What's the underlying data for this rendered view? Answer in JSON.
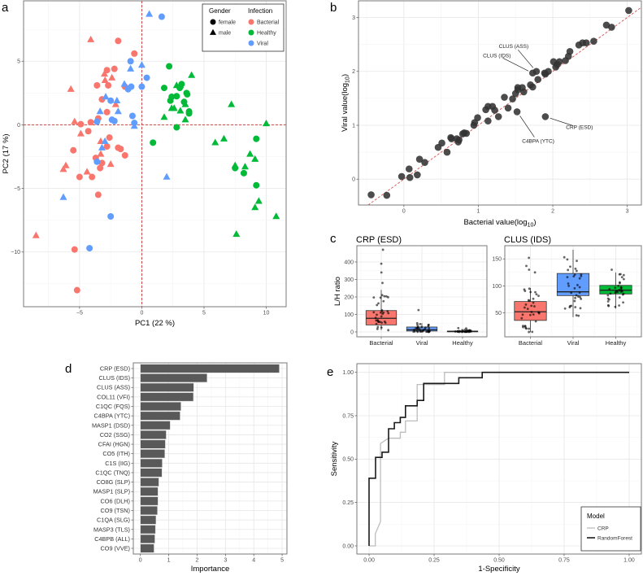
{
  "panels": {
    "a": "a",
    "b": "b",
    "c": "c",
    "d": "d",
    "e": "e"
  },
  "chart_data": [
    {
      "id": "pca",
      "type": "scatter",
      "title": "",
      "xlabel": "PC1 (22 %)",
      "ylabel": "PC2 (17 %)",
      "xlim": [
        -9.5,
        11.6
      ],
      "ylim": [
        -14.3,
        9.75
      ],
      "xticks": [
        -5,
        0,
        5,
        10
      ],
      "yticks": [
        -10,
        -5,
        0,
        5
      ],
      "reference_lines": {
        "x": 0,
        "y": 0,
        "color": "#c83737"
      },
      "legend": {
        "placement": "top-right",
        "gender_title": "Gender",
        "infection_title": "Infection",
        "gender": [
          {
            "label": "female",
            "shape": "circle"
          },
          {
            "label": "male",
            "shape": "triangle"
          }
        ],
        "infection": [
          {
            "label": "Bacterial",
            "color": "#F8766D"
          },
          {
            "label": "Healthy",
            "color": "#00BA38"
          },
          {
            "label": "Viral",
            "color": "#619CFF"
          }
        ]
      },
      "series": [
        {
          "name": "Bacterial",
          "color": "#F8766D",
          "female": [
            [
              -1.9,
              6.6
            ],
            [
              -0.6,
              5.6
            ],
            [
              -2.8,
              4.3
            ],
            [
              -2.2,
              4.4
            ],
            [
              -3.6,
              3.1
            ],
            [
              -2.7,
              3.1
            ],
            [
              -1.35,
              3.0
            ],
            [
              -3.2,
              2.0
            ],
            [
              -2.8,
              1.0
            ],
            [
              -3.5,
              0.5
            ],
            [
              -4.1,
              0.2
            ],
            [
              -4.9,
              0.05
            ],
            [
              -4.3,
              -0.5
            ],
            [
              -2.6,
              -1.0
            ],
            [
              -5.5,
              -2.0
            ],
            [
              -2.8,
              -1.7
            ],
            [
              -1.9,
              -1.8
            ],
            [
              -1.7,
              -1.9
            ],
            [
              -1.35,
              -2.4
            ],
            [
              -3.7,
              -2.6
            ],
            [
              -3.2,
              -3.0
            ],
            [
              -3.35,
              -3.4
            ],
            [
              -5.0,
              -4.1
            ],
            [
              -4.0,
              -4.1
            ],
            [
              -3.5,
              -5.5
            ],
            [
              -5.4,
              -9.8
            ],
            [
              -5.2,
              -13.0
            ]
          ],
          "male": [
            [
              -4.1,
              6.7
            ],
            [
              -5.7,
              2.8
            ],
            [
              -3.0,
              4.0
            ],
            [
              -2.95,
              3.5
            ],
            [
              -2.4,
              3.7
            ],
            [
              -2.1,
              1.6
            ],
            [
              -5.4,
              0.25
            ],
            [
              -4.9,
              -0.7
            ],
            [
              -3.3,
              -1.3
            ],
            [
              -3.3,
              -2.3
            ],
            [
              -2.5,
              -3.1
            ],
            [
              -6.1,
              -3.2
            ],
            [
              -6.3,
              -3.5
            ],
            [
              -4.4,
              -3.7
            ],
            [
              -8.5,
              -8.7
            ]
          ]
        },
        {
          "name": "Healthy",
          "color": "#00BA38",
          "female": [
            [
              2.2,
              4.6
            ],
            [
              1.8,
              2.9
            ],
            [
              3.2,
              3.2
            ],
            [
              3.05,
              2.9
            ],
            [
              3.6,
              2.5
            ],
            [
              3.65,
              2.4
            ],
            [
              2.4,
              2.2
            ],
            [
              2.8,
              2.25
            ],
            [
              2.3,
              1.9
            ],
            [
              3.4,
              1.8
            ],
            [
              3.8,
              1.05
            ],
            [
              3.8,
              0.9
            ],
            [
              2.8,
              -0.2
            ],
            [
              0.9,
              -1.4
            ],
            [
              9.2,
              -1.1
            ],
            [
              7.5,
              -3.4
            ],
            [
              8.2,
              -3.8
            ],
            [
              9.2,
              -4.75
            ]
          ],
          "male": [
            [
              4.0,
              3.9
            ],
            [
              2.8,
              3.1
            ],
            [
              3.1,
              3.1
            ],
            [
              2.4,
              1.3
            ],
            [
              2.6,
              1.3
            ],
            [
              3.1,
              1.1
            ],
            [
              1.8,
              0.6
            ],
            [
              3.5,
              0.4
            ],
            [
              3.5,
              1.6
            ],
            [
              7.2,
              1.6
            ],
            [
              10.0,
              0.1
            ],
            [
              5.9,
              -1.4
            ],
            [
              6.6,
              -1.1
            ],
            [
              7.5,
              -3.2
            ],
            [
              8.3,
              -3.3
            ],
            [
              8.7,
              -2.3
            ],
            [
              9.1,
              -2.7
            ],
            [
              9.4,
              -6.0
            ],
            [
              9.1,
              -6.5
            ],
            [
              10.8,
              -7.2
            ],
            [
              7.6,
              -8.6
            ]
          ]
        },
        {
          "name": "Viral",
          "color": "#619CFF",
          "female": [
            [
              1.6,
              8.5
            ],
            [
              -0.9,
              5.0
            ],
            [
              0.4,
              3.7
            ],
            [
              -0.85,
              3.0
            ],
            [
              -1.1,
              2.8
            ],
            [
              0.0,
              3.0
            ],
            [
              -2.5,
              1.9
            ],
            [
              -0.75,
              0.7
            ],
            [
              -2.4,
              0.4
            ],
            [
              -2.2,
              0.3
            ],
            [
              -0.6,
              0.15
            ],
            [
              -3.6,
              0.25
            ],
            [
              -3.6,
              -2.9
            ],
            [
              -2.5,
              -7.2
            ],
            [
              -4.2,
              -9.7
            ]
          ],
          "male": [
            [
              0.6,
              8.7
            ],
            [
              -0.9,
              4.4
            ],
            [
              0.0,
              4.7
            ],
            [
              -1.4,
              3.2
            ],
            [
              -2.9,
              2.2
            ],
            [
              -2.0,
              1.9
            ],
            [
              -3.35,
              1.05
            ],
            [
              -1.9,
              1.05
            ],
            [
              -0.6,
              -0.1
            ],
            [
              -3.2,
              -1.8
            ],
            [
              -2.96,
              -1.3
            ],
            [
              2.0,
              -4.1
            ],
            [
              -6.3,
              -5.7
            ]
          ]
        }
      ]
    },
    {
      "id": "bac-vs-viral",
      "type": "scatter",
      "xlabel": "Bacterial value(log10)",
      "ylabel": "Viral value(log10)",
      "xlabel_parts": [
        "Bacterial value(log",
        "10",
        ")"
      ],
      "ylabel_parts": [
        "Viral value(log",
        "10",
        ")"
      ],
      "xlim": [
        -0.61,
        3.19
      ],
      "ylim": [
        -0.48,
        3.31
      ],
      "xticks": [
        0,
        1,
        2,
        3
      ],
      "yticks": [
        0,
        1,
        2,
        3
      ],
      "reference_line": "y = x",
      "reference_color": "#d9534f",
      "point_color": "#333333",
      "points": [
        [
          -0.44,
          -0.29
        ],
        [
          -0.23,
          -0.3
        ],
        [
          -0.03,
          0.05
        ],
        [
          0.07,
          0.19
        ],
        [
          0.08,
          0.03
        ],
        [
          0.18,
          0.08
        ],
        [
          0.21,
          0.37
        ],
        [
          0.28,
          0.31
        ],
        [
          0.46,
          0.59
        ],
        [
          0.51,
          0.67
        ],
        [
          0.58,
          0.5
        ],
        [
          0.63,
          0.77
        ],
        [
          0.64,
          0.75
        ],
        [
          0.71,
          0.75
        ],
        [
          0.73,
          0.69
        ],
        [
          0.74,
          0.73
        ],
        [
          0.79,
          0.84
        ],
        [
          0.81,
          0.86
        ],
        [
          0.84,
          0.85
        ],
        [
          0.94,
          1.0
        ],
        [
          0.95,
          1.05
        ],
        [
          0.99,
          1.14
        ],
        [
          1.1,
          1.29
        ],
        [
          1.13,
          1.08
        ],
        [
          1.13,
          1.35
        ],
        [
          1.19,
          1.35
        ],
        [
          1.22,
          1.28
        ],
        [
          1.27,
          1.16
        ],
        [
          1.35,
          1.52
        ],
        [
          1.4,
          1.32
        ],
        [
          1.46,
          1.49
        ],
        [
          1.5,
          1.59
        ],
        [
          1.52,
          1.25
        ],
        [
          1.53,
          1.7
        ],
        [
          1.53,
          1.66
        ],
        [
          1.59,
          1.7
        ],
        [
          1.61,
          1.62
        ],
        [
          1.7,
          1.75
        ],
        [
          1.73,
          1.71
        ],
        [
          1.73,
          1.97
        ],
        [
          1.78,
          2.0
        ],
        [
          1.8,
          1.85
        ],
        [
          1.9,
          1.16
        ],
        [
          1.89,
          1.97
        ],
        [
          1.9,
          1.95
        ],
        [
          1.94,
          2.0
        ],
        [
          2.01,
          2.18
        ],
        [
          2.04,
          2.08
        ],
        [
          2.06,
          2.13
        ],
        [
          2.09,
          2.18
        ],
        [
          2.17,
          2.2
        ],
        [
          2.21,
          2.28
        ],
        [
          2.23,
          2.37
        ],
        [
          2.35,
          2.49
        ],
        [
          2.4,
          2.53
        ],
        [
          2.45,
          2.53
        ],
        [
          2.55,
          2.56
        ],
        [
          2.72,
          2.86
        ],
        [
          2.79,
          2.82
        ],
        [
          3.02,
          3.13
        ]
      ],
      "annotations": [
        {
          "label": "CLUS (ASS)",
          "point": [
            1.78,
            2.0
          ]
        },
        {
          "label": "CLUS (IDS)",
          "point": [
            1.73,
            1.97
          ]
        },
        {
          "label": "CRP (ESD)",
          "point": [
            1.9,
            1.16
          ]
        },
        {
          "label": "C4BPA (YTC)",
          "point": [
            1.52,
            1.25
          ]
        }
      ]
    },
    {
      "id": "crp-box",
      "type": "box",
      "title": "CRP (ESD)",
      "ylabel": "L/H ratio",
      "ylim": [
        -28,
        493
      ],
      "yticks": [
        0,
        100,
        200,
        300,
        400
      ],
      "categories": [
        {
          "name": "Bacterial",
          "color": "#F8766D",
          "lower": 10,
          "q1": 40,
          "median": 78,
          "q3": 122,
          "upper": 240,
          "outliers": [
            280,
            340,
            390,
            470
          ]
        },
        {
          "name": "Viral",
          "color": "#619CFF",
          "lower": 0,
          "q1": 5,
          "median": 12,
          "q3": 28,
          "upper": 50,
          "outliers": [
            125
          ]
        },
        {
          "name": "Healthy",
          "color": "#00BA38",
          "lower": 0,
          "q1": 1,
          "median": 3,
          "q3": 5,
          "upper": 12,
          "outliers": [
            20,
            22
          ]
        }
      ]
    },
    {
      "id": "clus-box",
      "type": "box",
      "title": "CLUS (IDS)",
      "ylabel": "",
      "ylim": [
        5.6,
        174.5
      ],
      "yticks": [
        50,
        100,
        150
      ],
      "categories": [
        {
          "name": "Bacterial",
          "color": "#F8766D",
          "lower": 14,
          "q1": 36,
          "median": 52,
          "q3": 71,
          "upper": 96,
          "outliers": [
            125,
            130,
            137,
            152
          ]
        },
        {
          "name": "Viral",
          "color": "#619CFF",
          "lower": 42,
          "q1": 82,
          "median": 89,
          "q3": 123,
          "upper": 167,
          "outliers": []
        },
        {
          "name": "Healthy",
          "color": "#00BA38",
          "lower": 58,
          "q1": 85,
          "median": 92,
          "q3": 101,
          "upper": 125,
          "outliers": [
            130
          ]
        }
      ]
    },
    {
      "id": "importance",
      "type": "bar",
      "orientation": "horizontal",
      "xlabel": "Importance",
      "xlim": [
        -0.25,
        5.17
      ],
      "xticks": [
        0,
        1,
        2,
        3,
        4,
        5
      ],
      "bar_color": "#595959",
      "categories": [
        "CRP (ESD)",
        "CLUS (IDS)",
        "CLUS (ASS)",
        "COL11 (VFI)",
        "C1QC (FQS)",
        "C4BPA (YTC)",
        "MASP1 (DSD)",
        "CO2 (SSG)",
        "CFAI (HGN)",
        "CO5 (ITH)",
        "C1S (IIG)",
        "C1QC (TNQ)",
        "CO8G (SLP)",
        "MASP1 (SLP)",
        "CO6 (DLH)",
        "CO9 (TSN)",
        "C1QA (SLG)",
        "MASP3 (TLS)",
        "C4BPB (ALL)",
        "CO9 (VVE)"
      ],
      "values": [
        4.9,
        2.35,
        1.88,
        1.87,
        1.43,
        1.4,
        1.05,
        0.91,
        0.88,
        0.86,
        0.77,
        0.76,
        0.65,
        0.62,
        0.62,
        0.6,
        0.55,
        0.53,
        0.51,
        0.48
      ]
    },
    {
      "id": "roc",
      "type": "line",
      "xlabel": "1-Specificity",
      "ylabel": "Sensitivity",
      "xlim": [
        -0.047,
        1.047
      ],
      "ylim": [
        -0.047,
        1.05
      ],
      "xticks": [
        0,
        0.25,
        0.5,
        0.75,
        1
      ],
      "yticks": [
        0,
        0.25,
        0.5,
        0.75,
        1
      ],
      "tick_labels": [
        "0.00",
        "0.25",
        "0.50",
        "0.75",
        "1.00"
      ],
      "legend": {
        "title": "Model",
        "placement": "bottom-right"
      },
      "series": [
        {
          "name": "CRP",
          "color": "#bdbdbd",
          "points": [
            [
              0,
              0
            ],
            [
              0.024,
              0
            ],
            [
              0.024,
              0.07
            ],
            [
              0.044,
              0.14
            ],
            [
              0.044,
              0.59
            ],
            [
              0.075,
              0.62
            ],
            [
              0.12,
              0.62
            ],
            [
              0.12,
              0.655
            ],
            [
              0.14,
              0.655
            ],
            [
              0.14,
              0.72
            ],
            [
              0.185,
              0.72
            ],
            [
              0.185,
              0.93
            ],
            [
              0.29,
              0.93
            ],
            [
              0.29,
              1.0
            ],
            [
              1,
              1
            ]
          ]
        },
        {
          "name": "RandomForest",
          "color": "#1a1a1a",
          "points": [
            [
              0,
              0
            ],
            [
              0,
              0.39
            ],
            [
              0.025,
              0.39
            ],
            [
              0.025,
              0.51
            ],
            [
              0.05,
              0.51
            ],
            [
              0.05,
              0.54
            ],
            [
              0.075,
              0.54
            ],
            [
              0.075,
              0.675
            ],
            [
              0.097,
              0.675
            ],
            [
              0.097,
              0.71
            ],
            [
              0.12,
              0.71
            ],
            [
              0.12,
              0.74
            ],
            [
              0.14,
              0.74
            ],
            [
              0.14,
              0.807
            ],
            [
              0.185,
              0.807
            ],
            [
              0.185,
              0.838
            ],
            [
              0.21,
              0.838
            ],
            [
              0.21,
              0.936
            ],
            [
              0.345,
              0.936
            ],
            [
              0.345,
              0.969
            ],
            [
              0.435,
              0.969
            ],
            [
              0.435,
              1
            ],
            [
              1,
              1
            ]
          ]
        }
      ]
    }
  ]
}
